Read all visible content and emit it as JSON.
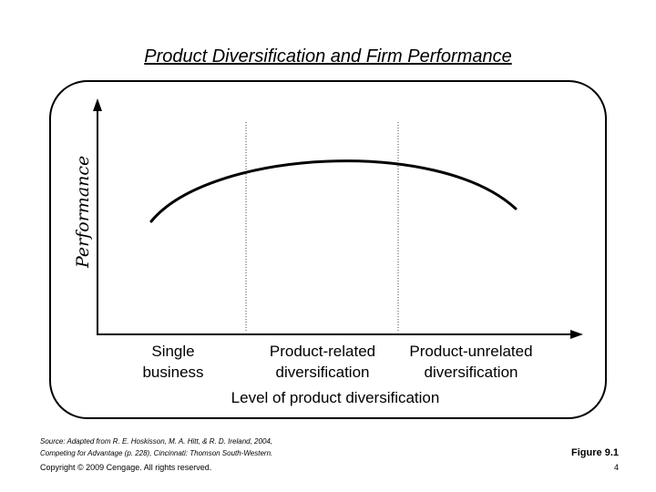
{
  "title": "Product Diversification and Firm Performance",
  "diagram": {
    "y_axis_label": "Performance",
    "x_axis_label": "Level of product diversification",
    "categories": [
      {
        "line1": "Single",
        "line2": "business"
      },
      {
        "line1": "Product-related",
        "line2": "diversification"
      },
      {
        "line1": "Product-unrelated",
        "line2": "diversification"
      }
    ]
  },
  "footer": {
    "source_line1": "Source: Adapted from R. E. Hoskisson, M. A. Hitt, & R. D. Ireland, 2004,",
    "source_line2": "Competing for Advantage (p. 228), Cincinnati: Thomson South-Western.",
    "copyright": "Copyright © 2009 Cengage. All rights reserved.",
    "figure_label": "Figure 9.1",
    "page_number": "4"
  }
}
